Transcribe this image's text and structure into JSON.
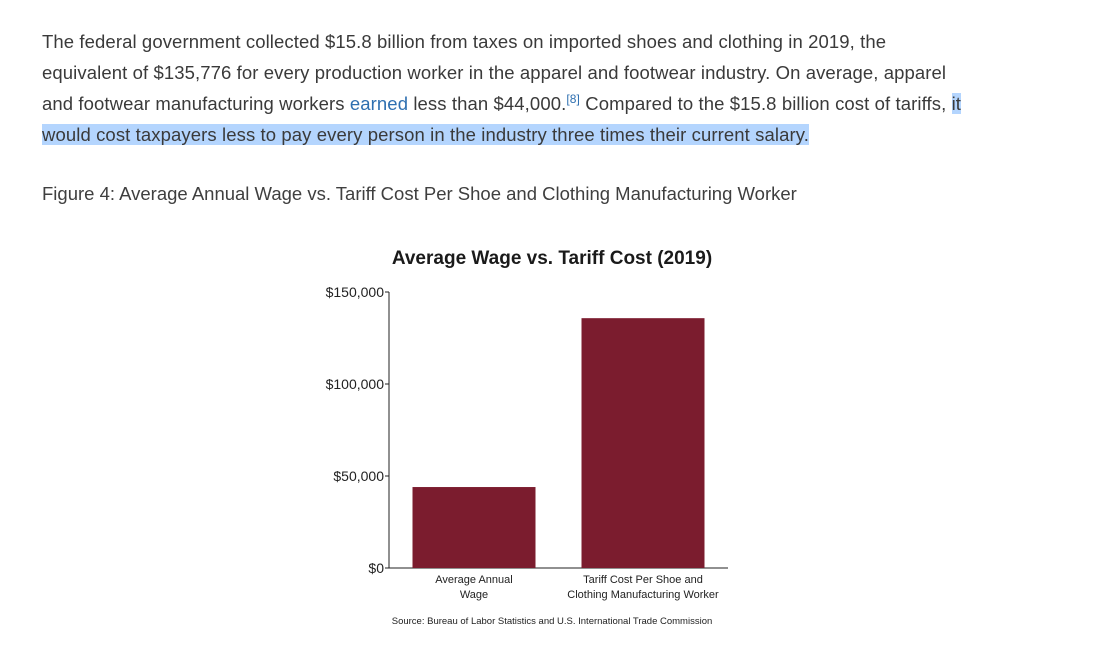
{
  "article": {
    "line1": "The federal government collected $15.8 billion from taxes on imported shoes and clothing in 2019, the",
    "line2": "equivalent of $135,776 for every production worker in the apparel and footwear industry. On average, apparel",
    "line3_pre": "and footwear manufacturing workers ",
    "line3_link": "earned",
    "line3_mid": " less than $44,000.",
    "footnote": "[8]",
    "line3_post": " Compared to the $15.8 billion cost of tariffs, ",
    "line3_highlight": "it",
    "line4_highlight": "would cost taxpayers less to pay every person in the industry three times their current salary."
  },
  "figure": {
    "caption": "Figure 4: Average Annual Wage vs. Tariff Cost Per Shoe and Clothing Manufacturing Worker"
  },
  "chart_data": {
    "type": "bar",
    "title": "Average Wage vs. Tariff Cost (2019)",
    "categories": [
      [
        "Average Annual",
        "Wage"
      ],
      [
        "Tariff Cost Per Shoe and",
        "Clothing Manufacturing Worker"
      ]
    ],
    "values": [
      44000,
      135776
    ],
    "ylim": [
      0,
      150000
    ],
    "yticks": [
      0,
      50000,
      100000,
      150000
    ],
    "ytick_labels": [
      "$0",
      "$50,000",
      "$100,000",
      "$150,000"
    ],
    "bar_color": "#7b1c2e",
    "source": "Source: Bureau of Labor Statistics and U.S. International Trade Commission"
  }
}
